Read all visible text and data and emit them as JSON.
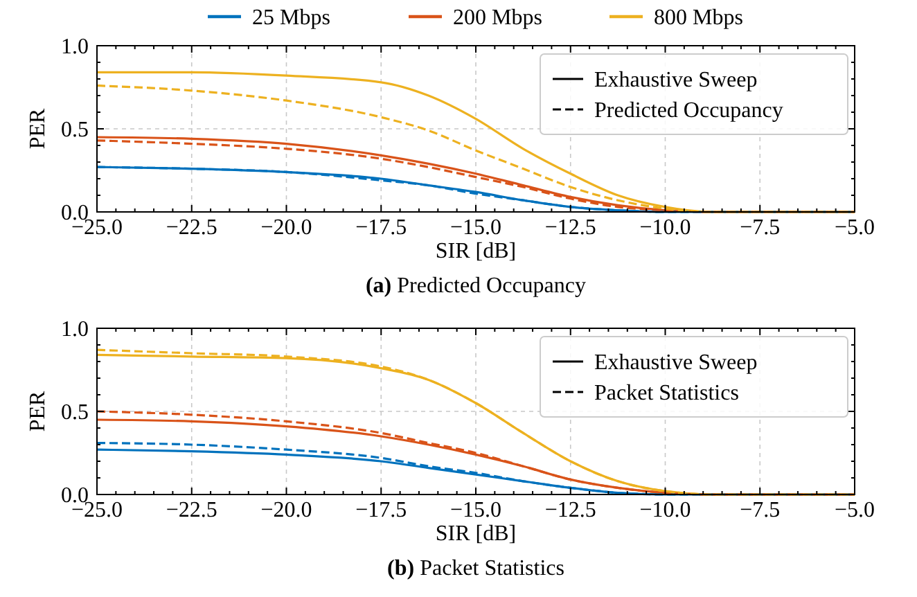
{
  "chart_data": [
    {
      "type": "line",
      "title": "(a) Predicted Occupancy",
      "xlabel": "SIR [dB]",
      "ylabel": "PER",
      "x": [
        -25,
        -22.5,
        -20,
        -17.5,
        -16.25,
        -15,
        -13.75,
        -12.5,
        -11.25,
        -10,
        -8.75,
        -7.5,
        -5
      ],
      "xlim": [
        -25,
        -5
      ],
      "xticks": [
        {
          "value": -25,
          "label": "−25.0"
        },
        {
          "value": -22.5,
          "label": "−22.5"
        },
        {
          "value": -20,
          "label": "−20.0"
        },
        {
          "value": -17.5,
          "label": "−17.5"
        },
        {
          "value": -15,
          "label": "−15.0"
        },
        {
          "value": -12.5,
          "label": "−12.5"
        },
        {
          "value": -10,
          "label": "−10.0"
        },
        {
          "value": -7.5,
          "label": "−7.5"
        },
        {
          "value": -5,
          "label": "−5.0"
        }
      ],
      "ylim": [
        0,
        1
      ],
      "yticks": [
        {
          "value": 0,
          "label": "0.0"
        },
        {
          "value": 0.5,
          "label": "0.5"
        },
        {
          "value": 1,
          "label": "1.0"
        }
      ],
      "grid": true,
      "legend": "top",
      "marker": "none",
      "annotations": [
        "Exhaustive Sweep",
        "Predicted Occupancy"
      ],
      "series": [
        {
          "name": "25 Mbps",
          "color": "#0072bd",
          "line_style": "solid",
          "values": [
            0.27,
            0.26,
            0.24,
            0.2,
            0.16,
            0.12,
            0.07,
            0.03,
            0.01,
            0,
            0,
            0,
            0
          ]
        },
        {
          "name": "200 Mbps",
          "color": "#d95319",
          "line_style": "solid",
          "values": [
            0.45,
            0.44,
            0.41,
            0.34,
            0.29,
            0.23,
            0.16,
            0.09,
            0.04,
            0.01,
            0,
            0,
            0
          ]
        },
        {
          "name": "800 Mbps",
          "color": "#edb120",
          "line_style": "solid",
          "values": [
            0.84,
            0.84,
            0.82,
            0.78,
            0.7,
            0.56,
            0.38,
            0.23,
            0.1,
            0.03,
            0,
            0,
            0
          ]
        },
        {
          "color": "#0072bd",
          "line_style": "dashed",
          "values": [
            0.27,
            0.26,
            0.24,
            0.19,
            0.16,
            0.11,
            0.07,
            0.03,
            0.01,
            0,
            0,
            0,
            0
          ]
        },
        {
          "color": "#d95319",
          "line_style": "dashed",
          "values": [
            0.43,
            0.41,
            0.38,
            0.32,
            0.27,
            0.21,
            0.15,
            0.08,
            0.03,
            0.01,
            0,
            0,
            0
          ]
        },
        {
          "color": "#edb120",
          "line_style": "dashed",
          "values": [
            0.76,
            0.73,
            0.67,
            0.57,
            0.49,
            0.37,
            0.26,
            0.15,
            0.07,
            0.02,
            0,
            0,
            0
          ]
        }
      ]
    },
    {
      "type": "line",
      "title": "(b) Packet Statistics",
      "xlabel": "SIR [dB]",
      "ylabel": "PER",
      "x": [
        -25,
        -22.5,
        -20,
        -17.5,
        -16.25,
        -15,
        -13.75,
        -12.5,
        -11.25,
        -10,
        -8.75,
        -7.5,
        -5
      ],
      "xlim": [
        -25,
        -5
      ],
      "xticks": [
        {
          "value": -25,
          "label": "−25.0"
        },
        {
          "value": -22.5,
          "label": "−22.5"
        },
        {
          "value": -20,
          "label": "−20.0"
        },
        {
          "value": -17.5,
          "label": "−17.5"
        },
        {
          "value": -15,
          "label": "−15.0"
        },
        {
          "value": -12.5,
          "label": "−12.5"
        },
        {
          "value": -10,
          "label": "−10.0"
        },
        {
          "value": -7.5,
          "label": "−7.5"
        },
        {
          "value": -5,
          "label": "−5.0"
        }
      ],
      "ylim": [
        0,
        1
      ],
      "yticks": [
        {
          "value": 0,
          "label": "0.0"
        },
        {
          "value": 0.5,
          "label": "0.5"
        },
        {
          "value": 1,
          "label": "1.0"
        }
      ],
      "grid": true,
      "marker": "none",
      "annotations": [
        "Exhaustive Sweep",
        "Packet Statistics"
      ],
      "series": [
        {
          "color": "#0072bd",
          "line_style": "solid",
          "values": [
            0.27,
            0.26,
            0.24,
            0.2,
            0.16,
            0.12,
            0.08,
            0.04,
            0.01,
            0,
            0,
            0,
            0
          ]
        },
        {
          "color": "#d95319",
          "line_style": "solid",
          "values": [
            0.45,
            0.44,
            0.41,
            0.35,
            0.3,
            0.24,
            0.17,
            0.09,
            0.04,
            0.01,
            0,
            0,
            0
          ]
        },
        {
          "color": "#edb120",
          "line_style": "solid",
          "values": [
            0.84,
            0.83,
            0.82,
            0.76,
            0.69,
            0.55,
            0.37,
            0.2,
            0.08,
            0.02,
            0,
            0,
            0
          ]
        },
        {
          "color": "#0072bd",
          "line_style": "dashed",
          "values": [
            0.31,
            0.3,
            0.27,
            0.22,
            0.17,
            0.13,
            0.08,
            0.04,
            0.01,
            0,
            0,
            0,
            0
          ]
        },
        {
          "color": "#d95319",
          "line_style": "dashed",
          "values": [
            0.5,
            0.48,
            0.44,
            0.37,
            0.31,
            0.25,
            0.17,
            0.09,
            0.04,
            0.01,
            0,
            0,
            0
          ]
        },
        {
          "color": "#edb120",
          "line_style": "dashed",
          "values": [
            0.87,
            0.85,
            0.83,
            0.77,
            0.69,
            0.55,
            0.37,
            0.2,
            0.08,
            0.02,
            0,
            0,
            0
          ]
        }
      ]
    }
  ]
}
